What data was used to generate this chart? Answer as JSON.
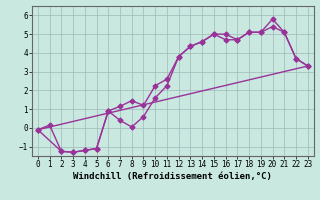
{
  "xlabel": "Windchill (Refroidissement éolien,°C)",
  "background_color": "#c8e8e0",
  "grid_color": "#a0b8b8",
  "line_color": "#993399",
  "xlim": [
    -0.5,
    23.5
  ],
  "ylim": [
    -1.5,
    6.5
  ],
  "xticks": [
    0,
    1,
    2,
    3,
    4,
    5,
    6,
    7,
    8,
    9,
    10,
    11,
    12,
    13,
    14,
    15,
    16,
    17,
    18,
    19,
    20,
    21,
    22,
    23
  ],
  "yticks": [
    -1,
    0,
    1,
    2,
    3,
    4,
    5,
    6
  ],
  "line1_x": [
    0,
    1,
    2,
    3,
    4,
    5,
    6,
    7,
    8,
    9,
    10,
    11,
    12,
    13,
    14,
    15,
    16,
    17,
    18,
    19,
    20,
    21,
    22,
    23
  ],
  "line1_y": [
    -0.1,
    0.15,
    -1.25,
    -1.3,
    -1.2,
    -1.1,
    0.9,
    0.4,
    0.05,
    0.6,
    1.6,
    2.25,
    3.8,
    4.35,
    4.6,
    5.0,
    5.0,
    4.7,
    5.1,
    5.1,
    5.8,
    5.1,
    3.7,
    3.3
  ],
  "line2_x": [
    0,
    2,
    3,
    4,
    5,
    6,
    7,
    8,
    9,
    10,
    11,
    12,
    13,
    14,
    15,
    16,
    17,
    18,
    19,
    20,
    21,
    22,
    23
  ],
  "line2_y": [
    -0.1,
    -1.25,
    -1.3,
    -1.2,
    -1.1,
    0.9,
    1.15,
    1.45,
    1.2,
    2.25,
    2.6,
    3.8,
    4.35,
    4.6,
    5.0,
    4.7,
    4.7,
    5.1,
    5.1,
    5.4,
    5.1,
    3.7,
    3.3
  ],
  "line3_x": [
    0,
    23
  ],
  "line3_y": [
    -0.1,
    3.3
  ],
  "marker": "D",
  "markersize": 2.5,
  "linewidth": 1.0,
  "xlabel_fontsize": 6.5,
  "tick_fontsize": 5.5,
  "fig_bgcolor": "#c8e8e0"
}
